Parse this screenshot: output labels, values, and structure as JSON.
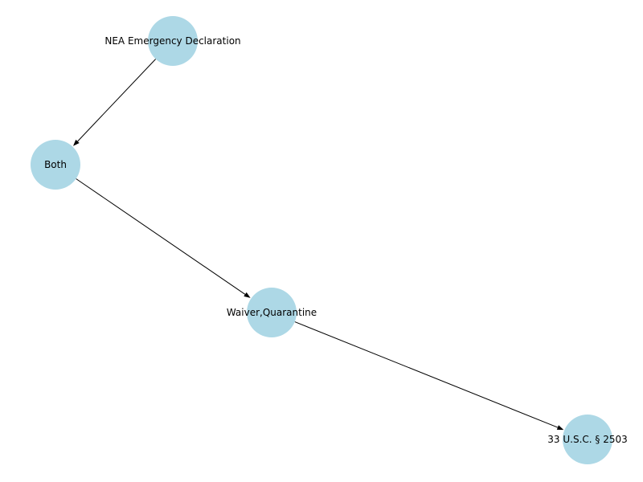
{
  "nodes": [
    {
      "id": "nea",
      "label": "NEA Emergency Declaration"
    },
    {
      "id": "both",
      "label": "Both"
    },
    {
      "id": "waiver",
      "label": "Waiver,Quarantine"
    },
    {
      "id": "usc",
      "label": "33 U.S.C. § 2503"
    }
  ],
  "edges": [
    {
      "from": "nea",
      "to": "both"
    },
    {
      "from": "both",
      "to": "waiver"
    },
    {
      "from": "waiver",
      "to": "usc"
    }
  ],
  "colors": {
    "node_fill": "#add8e6",
    "edge": "#000000",
    "text": "#000000",
    "background": "#ffffff"
  }
}
